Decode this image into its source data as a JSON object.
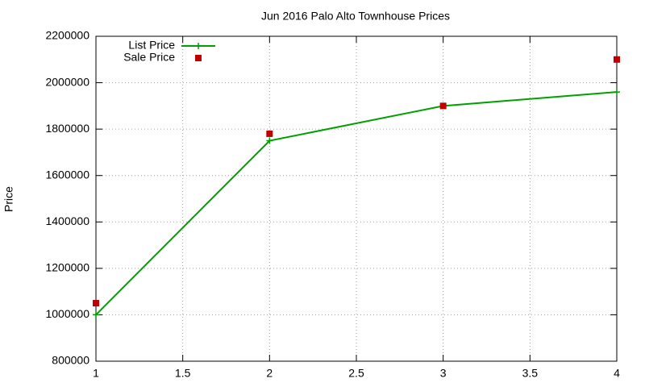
{
  "chart_data": {
    "type": "line",
    "title": "Jun 2016 Palo Alto Townhouse Prices",
    "ylabel": "Price",
    "x": [
      1,
      2,
      3,
      4
    ],
    "series": [
      {
        "name": "List Price",
        "color": "#00a000",
        "style": "linespoints",
        "values": [
          1000000,
          1750000,
          1900000,
          1960000
        ]
      },
      {
        "name": "Sale Price",
        "color": "#c00000",
        "style": "points",
        "values": [
          1050000,
          1780000,
          1900000,
          2100000
        ]
      }
    ],
    "xlim": [
      1,
      4
    ],
    "xticks": [
      1,
      1.5,
      2,
      2.5,
      3,
      3.5,
      4
    ],
    "ylim": [
      800000,
      2200000
    ],
    "yticks": [
      800000,
      1000000,
      1200000,
      1400000,
      1600000,
      1800000,
      2000000,
      2200000
    ],
    "grid": true,
    "legend": "top-left"
  }
}
